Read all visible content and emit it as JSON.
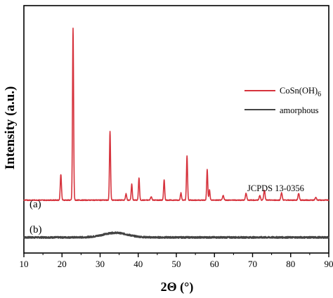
{
  "chart_data": {
    "type": "line",
    "xlabel": "2Θ (°)",
    "ylabel": "Intensity (a.u.)",
    "xlim": [
      10,
      90
    ],
    "x_ticks": [
      10,
      20,
      30,
      40,
      50,
      60,
      70,
      80,
      90
    ],
    "y_ticks_shown": false,
    "grid": false,
    "legend_position": "top-right",
    "colors": {
      "series_a": "#d6333d",
      "series_b": "#444444",
      "axes": "#000000"
    },
    "series": [
      {
        "name": "CoSn(OH)6",
        "legend_label": "CoSn(OH)",
        "legend_subscript": "6",
        "panel_label": "(a)",
        "baseline": 1.0,
        "noise": 0.15,
        "peaks": [
          {
            "x": 19.7,
            "h": 9.0,
            "w": 0.22
          },
          {
            "x": 22.9,
            "h": 60.0,
            "w": 0.2
          },
          {
            "x": 32.6,
            "h": 24.0,
            "w": 0.2
          },
          {
            "x": 36.8,
            "h": 2.2,
            "w": 0.22
          },
          {
            "x": 38.3,
            "h": 5.6,
            "w": 0.2
          },
          {
            "x": 40.2,
            "h": 7.8,
            "w": 0.2
          },
          {
            "x": 43.4,
            "h": 1.2,
            "w": 0.25
          },
          {
            "x": 46.8,
            "h": 7.2,
            "w": 0.2
          },
          {
            "x": 51.2,
            "h": 2.5,
            "w": 0.22
          },
          {
            "x": 52.8,
            "h": 15.5,
            "w": 0.2
          },
          {
            "x": 58.1,
            "h": 10.6,
            "w": 0.2
          },
          {
            "x": 58.7,
            "h": 3.5,
            "w": 0.2
          },
          {
            "x": 62.3,
            "h": 1.6,
            "w": 0.25
          },
          {
            "x": 68.3,
            "h": 2.4,
            "w": 0.25
          },
          {
            "x": 71.9,
            "h": 1.6,
            "w": 0.25
          },
          {
            "x": 73.1,
            "h": 3.5,
            "w": 0.25
          },
          {
            "x": 77.6,
            "h": 2.6,
            "w": 0.25
          },
          {
            "x": 82.1,
            "h": 2.4,
            "w": 0.25
          },
          {
            "x": 86.6,
            "h": 1.0,
            "w": 0.25
          }
        ]
      },
      {
        "name": "amorphous",
        "legend_label": "amorphous",
        "panel_label": "(b)",
        "baseline": -12.0,
        "noise": 0.25,
        "hump": {
          "x": 34.0,
          "h": 1.6,
          "w": 4.5
        }
      }
    ],
    "annotations": [
      "JCPDS 13-0356"
    ]
  }
}
